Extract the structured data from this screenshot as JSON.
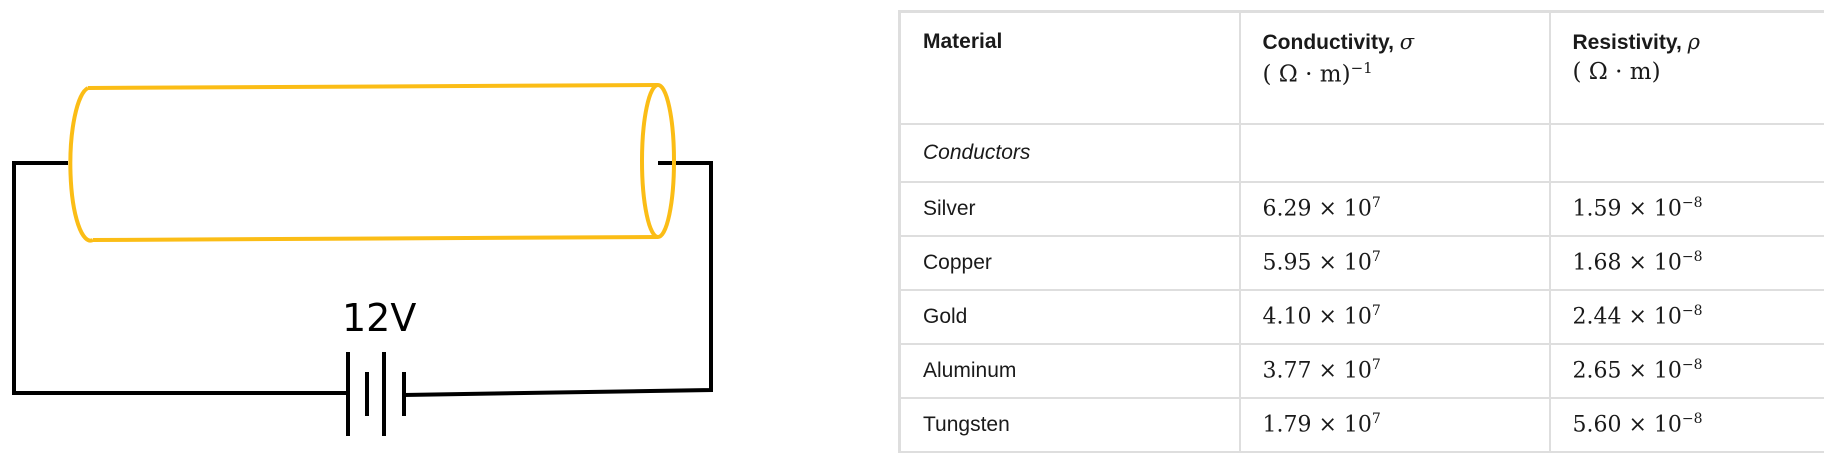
{
  "diagram": {
    "battery_label": "12V",
    "cylinder_color": "#fbbd16",
    "wire_color": "#000000"
  },
  "table": {
    "headers": {
      "material": "Material",
      "conductivity": "Conductivity,",
      "conductivity_symbol": "σ",
      "conductivity_unit": "( Ω · m)",
      "conductivity_unit_exp": "−1",
      "resistivity": "Resistivity,",
      "resistivity_symbol": "ρ",
      "resistivity_unit": "( Ω · m)"
    },
    "category": "Conductors",
    "rows": [
      {
        "material": "Silver",
        "cond_mant": "6.29 × 10",
        "cond_exp": "7",
        "res_mant": "1.59 × 10",
        "res_exp": "−8"
      },
      {
        "material": "Copper",
        "cond_mant": "5.95 × 10",
        "cond_exp": "7",
        "res_mant": "1.68 × 10",
        "res_exp": "−8"
      },
      {
        "material": "Gold",
        "cond_mant": "4.10 × 10",
        "cond_exp": "7",
        "res_mant": "2.44 × 10",
        "res_exp": "−8"
      },
      {
        "material": "Aluminum",
        "cond_mant": "3.77 × 10",
        "cond_exp": "7",
        "res_mant": "2.65 × 10",
        "res_exp": "−8"
      },
      {
        "material": "Tungsten",
        "cond_mant": "1.79 × 10",
        "cond_exp": "7",
        "res_mant": "5.60 × 10",
        "res_exp": "−8"
      }
    ]
  }
}
